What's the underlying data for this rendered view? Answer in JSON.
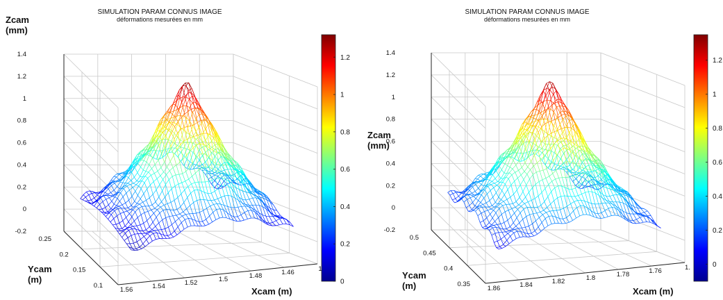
{
  "chart_data": [
    {
      "type": "surface",
      "title": "SIMULATION PARAM CONNUS IMAGE",
      "subtitle": "déformations mesurées en mm",
      "zlabel": "Zcam\n(mm)",
      "ylabel": "Ycam\n(m)",
      "xlabel": "Xcam  (m)",
      "zlim": [
        -0.2,
        1.4
      ],
      "z_ticks": [
        "1.4",
        "1.2",
        "1",
        "0.8",
        "0.6",
        "0.4",
        "0.2",
        "0",
        "-0.2"
      ],
      "y_ticks": [
        "0.25",
        "0.2",
        "0.15",
        "0.1"
      ],
      "x_ticks": [
        "1.56",
        "1.54",
        "1.52",
        "1.5",
        "1.48",
        "1.46",
        "1"
      ],
      "colorbar_ticks": [
        "1.2",
        "1",
        "0.8",
        "0.6",
        "0.4",
        "0.2",
        "0"
      ],
      "colorbar_range": [
        0,
        1.32
      ],
      "peak_z": 1.3,
      "grid": true
    },
    {
      "type": "surface",
      "title": "SIMULATION PARAM CONNUS IMAGE",
      "subtitle": "déformations mesurées en mm",
      "zlabel": "Zcam\n(mm)",
      "ylabel": "Ycam\n(m)",
      "xlabel": "Xcam  (m)",
      "zlim": [
        -0.2,
        1.4
      ],
      "z_ticks": [
        "1.4",
        "1.2",
        "1",
        "0.8",
        "0.6",
        "0.4",
        "0.2",
        "0",
        "-0.2"
      ],
      "y_ticks": [
        "0.5",
        "0.45",
        "0.4",
        "0.35"
      ],
      "x_ticks": [
        "1.86",
        "1.84",
        "1.82",
        "1.8",
        "1.78",
        "1.76",
        "1."
      ],
      "colorbar_ticks": [
        "1.2",
        "1",
        "0.8",
        "0.6",
        "0.4",
        "0.2",
        "0"
      ],
      "colorbar_range": [
        -0.1,
        1.35
      ],
      "peak_z": 1.3,
      "grid": true
    }
  ],
  "colors": {
    "colormap": [
      "#00008f",
      "#0000ff",
      "#0080ff",
      "#00ffff",
      "#80ff80",
      "#ffff00",
      "#ff8000",
      "#ff0000",
      "#800000"
    ],
    "grid": "#c8c8c8",
    "axis": "#222222"
  }
}
